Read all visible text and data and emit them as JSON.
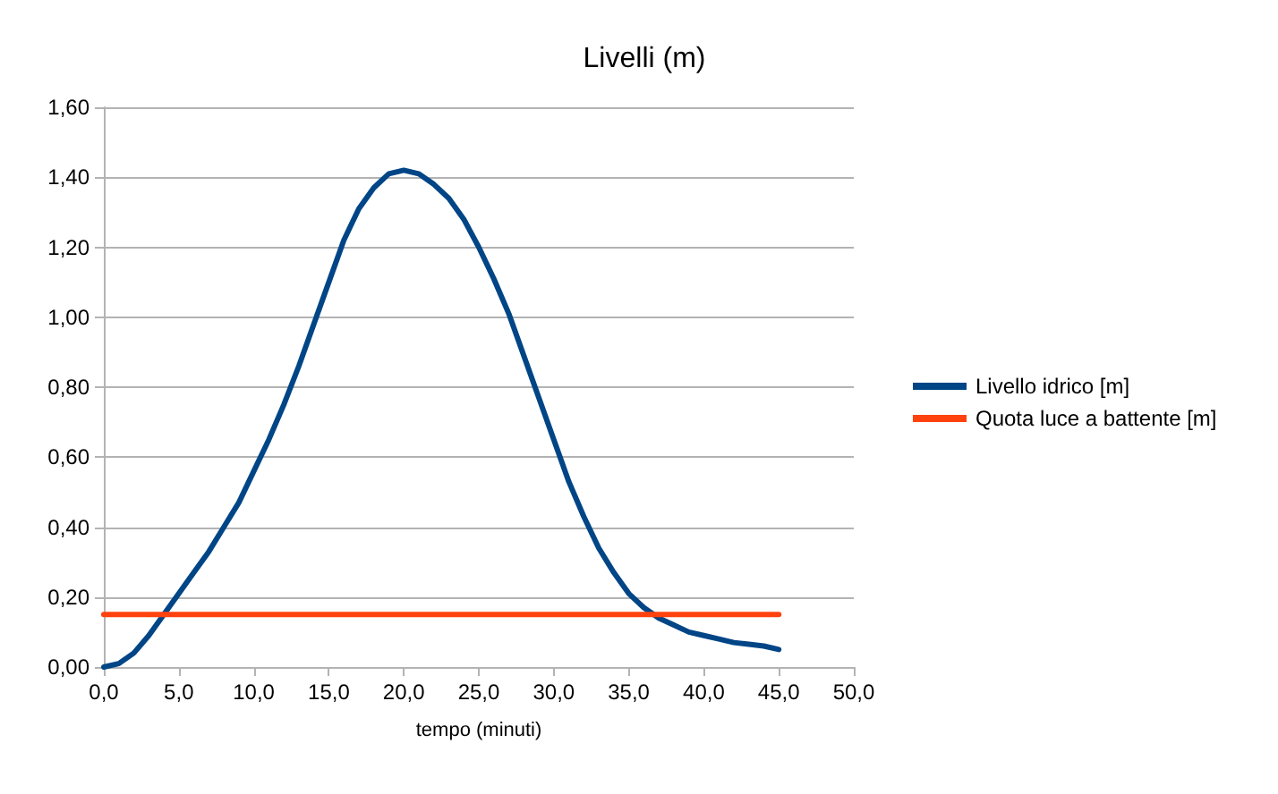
{
  "chart_data": {
    "type": "line",
    "title": "Livelli (m)",
    "xlabel": "tempo (minuti)",
    "series": [
      {
        "name": "Livello idrico [m]",
        "color": "#004586",
        "x": [
          0,
          1,
          2,
          3,
          4,
          5,
          6,
          7,
          8,
          9,
          10,
          11,
          12,
          13,
          14,
          15,
          16,
          17,
          18,
          19,
          20,
          21,
          22,
          23,
          24,
          25,
          26,
          27,
          28,
          29,
          30,
          31,
          32,
          33,
          34,
          35,
          36,
          37,
          38,
          39,
          40,
          41,
          42,
          43,
          44,
          45
        ],
        "values": [
          0.0,
          0.01,
          0.04,
          0.09,
          0.15,
          0.21,
          0.27,
          0.33,
          0.4,
          0.47,
          0.56,
          0.65,
          0.75,
          0.86,
          0.98,
          1.1,
          1.22,
          1.31,
          1.37,
          1.41,
          1.42,
          1.41,
          1.38,
          1.34,
          1.28,
          1.2,
          1.11,
          1.01,
          0.89,
          0.77,
          0.65,
          0.53,
          0.43,
          0.34,
          0.27,
          0.21,
          0.17,
          0.14,
          0.12,
          0.1,
          0.09,
          0.08,
          0.07,
          0.065,
          0.06,
          0.05
        ]
      },
      {
        "name": "Quota luce a battente [m]",
        "color": "#ff420e",
        "x": [
          0,
          45
        ],
        "values": [
          0.15,
          0.15
        ]
      }
    ],
    "xlim": [
      0,
      50
    ],
    "xticks": [
      {
        "value": 0,
        "label": "0,0"
      },
      {
        "value": 5,
        "label": "5,0"
      },
      {
        "value": 10,
        "label": "10,0"
      },
      {
        "value": 15,
        "label": "15,0"
      },
      {
        "value": 20,
        "label": "20,0"
      },
      {
        "value": 25,
        "label": "25,0"
      },
      {
        "value": 30,
        "label": "30,0"
      },
      {
        "value": 35,
        "label": "35,0"
      },
      {
        "value": 40,
        "label": "40,0"
      },
      {
        "value": 45,
        "label": "45,0"
      },
      {
        "value": 50,
        "label": "50,0"
      }
    ],
    "ylim": [
      0,
      1.6
    ],
    "yticks": [
      {
        "value": 0,
        "label": "0,00"
      },
      {
        "value": 0.2,
        "label": "0,20"
      },
      {
        "value": 0.4,
        "label": "0,40"
      },
      {
        "value": 0.6,
        "label": "0,60"
      },
      {
        "value": 0.8,
        "label": "0,80"
      },
      {
        "value": 1.0,
        "label": "1,00"
      },
      {
        "value": 1.2,
        "label": "1,20"
      },
      {
        "value": 1.4,
        "label": "1,40"
      },
      {
        "value": 1.6,
        "label": "1,60"
      }
    ],
    "grid": "y",
    "legend": "right",
    "marker": "none",
    "line_style": "solid"
  }
}
